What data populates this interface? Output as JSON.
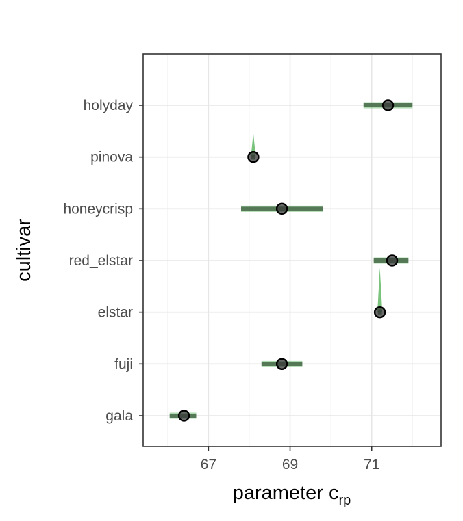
{
  "chart_data": {
    "type": "point-range",
    "xlabel_main": "parameter c",
    "xlabel_sub": "rp",
    "ylabel": "cultivar",
    "xlim": [
      65.4,
      72.7
    ],
    "xticks": [
      67,
      69,
      71
    ],
    "xtick_labels": [
      "67",
      "69",
      "71"
    ],
    "categories": [
      "holyday",
      "pinova",
      "honeycrisp",
      "red_elstar",
      "elstar",
      "fuji",
      "gala"
    ],
    "estimates": [
      71.4,
      68.1,
      68.8,
      71.5,
      71.2,
      68.8,
      66.4
    ],
    "interval_low": [
      70.8,
      68.05,
      67.8,
      71.05,
      71.15,
      68.3,
      66.05
    ],
    "interval_high": [
      72.0,
      68.15,
      69.8,
      71.9,
      71.25,
      69.3,
      66.7
    ],
    "density_spikes": [
      {
        "category": "pinova",
        "value": 68.1,
        "spread": 0.12
      },
      {
        "category": "elstar",
        "value": 71.2,
        "spread": 0.12
      }
    ],
    "grid": true,
    "legend": "none",
    "colors": {
      "interval": "#3a5a3a",
      "density": "#4caf50",
      "point_fill": "#3a3a3a",
      "point_stroke": "#000000",
      "grid": "#e6e6e6",
      "border": "#333333"
    }
  }
}
